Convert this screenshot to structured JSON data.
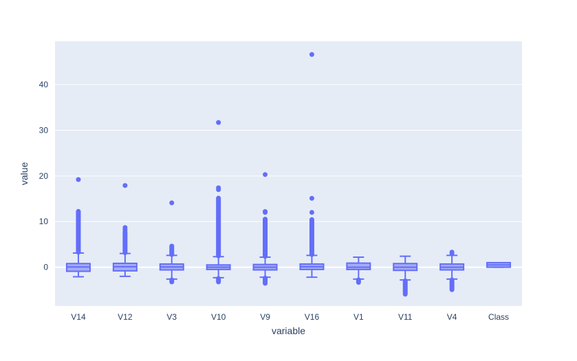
{
  "chart_data": {
    "type": "box",
    "title": "",
    "xlabel": "variable",
    "ylabel": "value",
    "ylim": [
      -8.5,
      49.5
    ],
    "yticks": [
      0,
      10,
      20,
      30,
      40
    ],
    "grid": true,
    "legend": "none",
    "colors": {
      "plot_bg": "#e5ecf6",
      "grid": "#ffffff",
      "box_fill": "#a5acf5",
      "box_line": "#636efa",
      "outlier": "#636efa",
      "text": "#2a3f5f"
    },
    "categories": [
      "V14",
      "V12",
      "V3",
      "V10",
      "V9",
      "V16",
      "V1",
      "V11",
      "V4",
      "Class"
    ],
    "boxes": [
      {
        "name": "V14",
        "lower_fence": -2.1,
        "q1": -0.9,
        "median": 0.05,
        "q3": 0.8,
        "upper_fence": 3.1,
        "outlier_bands": [
          [
            3.2,
            12.3
          ]
        ],
        "outliers": [
          19.2
        ],
        "low_outlier_bands": []
      },
      {
        "name": "V12",
        "lower_fence": -2.0,
        "q1": -0.8,
        "median": 0.1,
        "q3": 0.85,
        "upper_fence": 3.0,
        "outlier_bands": [
          [
            3.1,
            7.8
          ]
        ],
        "outliers": [
          8.2,
          8.7,
          17.9
        ],
        "low_outlier_bands": []
      },
      {
        "name": "V3",
        "lower_fence": -2.6,
        "q1": -0.6,
        "median": 0.05,
        "q3": 0.7,
        "upper_fence": 2.6,
        "outlier_bands": [
          [
            2.7,
            4.7
          ]
        ],
        "outliers": [
          14.1
        ],
        "low_outlier_bands": [
          [
            -3.3,
            -2.7
          ]
        ]
      },
      {
        "name": "V10",
        "lower_fence": -2.3,
        "q1": -0.5,
        "median": 0.0,
        "q3": 0.5,
        "upper_fence": 2.3,
        "outlier_bands": [
          [
            2.4,
            15.2
          ]
        ],
        "outliers": [
          17.0,
          17.4,
          31.7
        ],
        "low_outlier_bands": [
          [
            -3.3,
            -2.4
          ]
        ]
      },
      {
        "name": "V9",
        "lower_fence": -2.2,
        "q1": -0.6,
        "median": 0.0,
        "q3": 0.6,
        "upper_fence": 2.2,
        "outlier_bands": [
          [
            2.3,
            10.6
          ]
        ],
        "outliers": [
          12.0,
          12.2,
          20.3
        ],
        "low_outlier_bands": [
          [
            -3.6,
            -2.3
          ]
        ]
      },
      {
        "name": "V16",
        "lower_fence": -2.2,
        "q1": -0.5,
        "median": 0.1,
        "q3": 0.7,
        "upper_fence": 2.6,
        "outlier_bands": [
          [
            2.7,
            10.5
          ]
        ],
        "outliers": [
          12.0,
          15.1,
          46.6
        ],
        "low_outlier_bands": []
      },
      {
        "name": "V1",
        "lower_fence": -2.6,
        "q1": -0.5,
        "median": 0.0,
        "q3": 0.9,
        "upper_fence": 2.2,
        "outlier_bands": [],
        "outliers": [],
        "low_outlier_bands": [
          [
            -3.4,
            -2.7
          ]
        ]
      },
      {
        "name": "V11",
        "lower_fence": -2.8,
        "q1": -0.7,
        "median": 0.0,
        "q3": 0.8,
        "upper_fence": 2.4,
        "outlier_bands": [],
        "outliers": [],
        "low_outlier_bands": [
          [
            -6.0,
            -2.9
          ]
        ]
      },
      {
        "name": "V4",
        "lower_fence": -2.6,
        "q1": -0.6,
        "median": 0.0,
        "q3": 0.7,
        "upper_fence": 2.6,
        "outlier_bands": [],
        "outliers": [
          3.0,
          3.3
        ],
        "low_outlier_bands": [
          [
            -5.0,
            -2.7
          ]
        ]
      },
      {
        "name": "Class",
        "lower_fence": 0.0,
        "q1": 0.0,
        "median": 0.5,
        "q3": 1.0,
        "upper_fence": 1.0,
        "outlier_bands": [],
        "outliers": [],
        "low_outlier_bands": []
      }
    ]
  }
}
